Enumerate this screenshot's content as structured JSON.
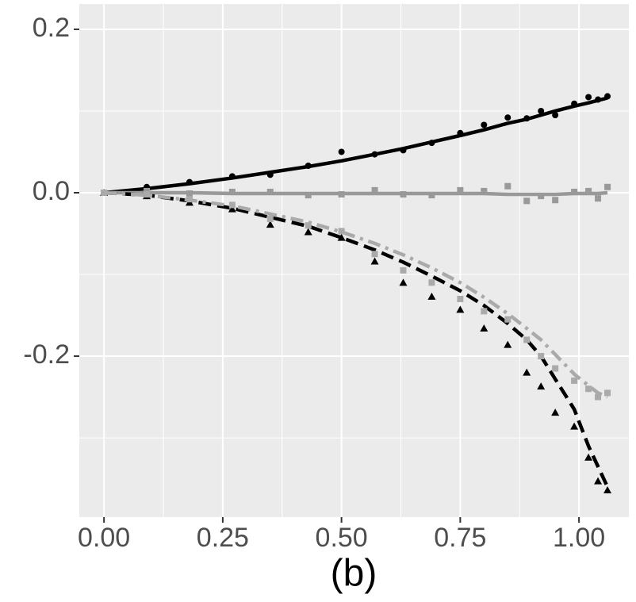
{
  "chart_data": {
    "type": "scatter",
    "xlabel": "(b)",
    "xlim": [
      -0.052,
      1.105
    ],
    "ylim": [
      -0.397,
      0.231
    ],
    "xticks": [
      {
        "value": 0,
        "label": "0.00"
      },
      {
        "value": 0.25,
        "label": "0.25"
      },
      {
        "value": 0.5,
        "label": "0.50"
      },
      {
        "value": 0.75,
        "label": "0.75"
      },
      {
        "value": 1,
        "label": "1.00"
      }
    ],
    "yticks": [
      0.2,
      {
        "value": 0,
        "label": "0.0"
      },
      -0.2
    ],
    "x_minor_ticks": [
      0.125,
      0.375,
      0.625,
      0.875
    ],
    "y_minor_ticks": [
      0.1,
      -0.1,
      -0.3
    ],
    "grid": true,
    "x": [
      0,
      0.09,
      0.18,
      0.27,
      0.35,
      0.43,
      0.5,
      0.57,
      0.63,
      0.69,
      0.75,
      0.8,
      0.85,
      0.89,
      0.92,
      0.95,
      0.99,
      1.02,
      1.04,
      1.06
    ],
    "series": [
      {
        "color": "#000000",
        "marker": "circle",
        "linestyle": "solid",
        "values": [
          0,
          0.007,
          0.013,
          0.02,
          0.022,
          0.033,
          0.05,
          0.047,
          0.052,
          0.061,
          0.073,
          0.083,
          0.092,
          0.091,
          0.1,
          0.095,
          0.109,
          0.117,
          0.114,
          0.118
        ],
        "fit": [
          0,
          0.005,
          0.011,
          0.018,
          0.025,
          0.032,
          0.039,
          0.047,
          0.054,
          0.062,
          0.07,
          0.077,
          0.085,
          0.09,
          0.095,
          0.1,
          0.106,
          0.11,
          0.113,
          0.116
        ]
      },
      {
        "color": "#999999",
        "marker": "square",
        "linestyle": "solid",
        "values": [
          0,
          0.002,
          -0.001,
          0.001,
          0.001,
          -0.003,
          -0.002,
          0.003,
          -0.002,
          -0.003,
          0.003,
          0.002,
          0.008,
          -0.01,
          -0.004,
          -0.009,
          0.001,
          0.002,
          -0.007,
          0.007
        ],
        "fit": [
          0,
          0,
          0,
          -0.001,
          -0.001,
          -0.001,
          -0.001,
          -0.001,
          -0.001,
          -0.001,
          -0.001,
          -0.001,
          -0.002,
          -0.002,
          -0.002,
          -0.002,
          -0.001,
          -0.001,
          -0.001,
          0
        ]
      },
      {
        "color": "#000000",
        "marker": "triangle",
        "linestyle": "dashed",
        "values": [
          0,
          -0.004,
          -0.012,
          -0.02,
          -0.039,
          -0.048,
          -0.055,
          -0.084,
          -0.11,
          -0.127,
          -0.143,
          -0.166,
          -0.186,
          -0.22,
          -0.237,
          -0.269,
          -0.286,
          -0.324,
          -0.353,
          -0.364
        ],
        "fit": [
          0,
          -0.003,
          -0.01,
          -0.019,
          -0.03,
          -0.041,
          -0.055,
          -0.07,
          -0.085,
          -0.102,
          -0.12,
          -0.138,
          -0.16,
          -0.18,
          -0.2,
          -0.228,
          -0.265,
          -0.31,
          -0.335,
          -0.36
        ]
      },
      {
        "color": "#aaaaaa",
        "marker": "square",
        "linestyle": "dashdot",
        "values": [
          0,
          -0.002,
          -0.008,
          -0.015,
          -0.032,
          -0.04,
          -0.047,
          -0.075,
          -0.095,
          -0.11,
          -0.13,
          -0.145,
          -0.155,
          -0.18,
          -0.2,
          -0.215,
          -0.23,
          -0.24,
          -0.25,
          -0.245
        ],
        "fit": [
          0,
          -0.003,
          -0.009,
          -0.016,
          -0.026,
          -0.036,
          -0.048,
          -0.062,
          -0.076,
          -0.092,
          -0.11,
          -0.128,
          -0.148,
          -0.166,
          -0.18,
          -0.198,
          -0.222,
          -0.236,
          -0.245,
          -0.25
        ]
      }
    ]
  }
}
